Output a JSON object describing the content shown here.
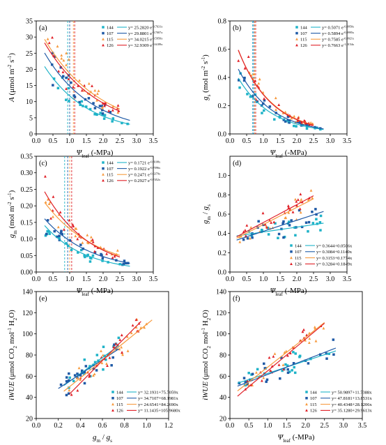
{
  "colors": {
    "144": "#1fb3c8",
    "107": "#1f5aa6",
    "115": "#f79a3e",
    "126": "#e01f26"
  },
  "chart_data": [
    {
      "id": "a",
      "type": "scatter",
      "panel_label": "(a)",
      "x_label": "Ψleaf (-MPa)",
      "y_label": "A (μmol m-2 s-1)",
      "xlim": [
        0,
        3.5
      ],
      "ylim": [
        0,
        35
      ],
      "x_ticks": [
        "0.0",
        "0.5",
        "1.0",
        "1.5",
        "2.0",
        "2.5",
        "3.0",
        "3.5"
      ],
      "y_ticks": [
        "0",
        "5",
        "10",
        "15",
        "20",
        "25",
        "30",
        "35"
      ],
      "legend_position": "top-right",
      "vlines": [
        0.94,
        1.0,
        1.11,
        1.15
      ],
      "series": [
        {
          "name": "144",
          "equation": "y= 25.2820 e-0.7631x",
          "fit": {
            "model": "exp",
            "a": 25.282,
            "b": -0.7631
          },
          "x_range": [
            0.25,
            2.8
          ]
        },
        {
          "name": "107",
          "equation": "y= 29.8801 e-0.7007x",
          "fit": {
            "model": "exp",
            "a": 29.8801,
            "b": -0.7007
          },
          "x_range": [
            0.25,
            2.8
          ]
        },
        {
          "name": "115",
          "equation": "y= 34.0215 e-0.5950x",
          "fit": {
            "model": "exp",
            "a": 34.0215,
            "b": -0.595
          },
          "x_range": [
            0.25,
            2.5
          ]
        },
        {
          "name": "126",
          "equation": "y= 32.9309 e-0.6189x",
          "fit": {
            "model": "exp",
            "a": 32.9309,
            "b": -0.6189
          },
          "x_range": [
            0.25,
            2.5
          ]
        }
      ]
    },
    {
      "id": "b",
      "type": "scatter",
      "panel_label": "(b)",
      "x_label": "Ψleaf (-MPa)",
      "y_label": "gs (mol m-2 s-1)",
      "xlim": [
        0,
        3.5
      ],
      "ylim": [
        0,
        0.8
      ],
      "x_ticks": [
        "0.0",
        "0.5",
        "1.0",
        "1.5",
        "2.0",
        "2.5",
        "3.0",
        "3.5"
      ],
      "y_ticks": [
        "0.0",
        "0.2",
        "0.4",
        "0.6",
        "0.8"
      ],
      "legend_position": "top-right",
      "vlines": [
        0.68,
        0.71,
        0.74,
        0.77
      ],
      "series": [
        {
          "name": "144",
          "equation": "y= 0.5071 e-0.9950x",
          "fit": {
            "model": "exp",
            "a": 0.5071,
            "b": -0.995
          },
          "x_range": [
            0.25,
            2.8
          ]
        },
        {
          "name": "107",
          "equation": "y= 0.5894 e-0.9995x",
          "fit": {
            "model": "exp",
            "a": 0.5894,
            "b": -0.9995
          },
          "x_range": [
            0.25,
            2.8
          ]
        },
        {
          "name": "115",
          "equation": "y= 0.7585 e-0.9921x",
          "fit": {
            "model": "exp",
            "a": 0.7585,
            "b": -0.9921
          },
          "x_range": [
            0.25,
            2.5
          ]
        },
        {
          "name": "126",
          "equation": "y= 0.7663 e-1.0154x",
          "fit": {
            "model": "exp",
            "a": 0.7663,
            "b": -1.0154
          },
          "x_range": [
            0.25,
            2.5
          ]
        }
      ]
    },
    {
      "id": "c",
      "type": "scatter",
      "panel_label": "(c)",
      "x_label": "Ψleaf (-MPa)",
      "y_label": "gm (mol m-2 s-1)",
      "xlim": [
        0,
        3.5
      ],
      "ylim": [
        0,
        0.35
      ],
      "x_ticks": [
        "0.0",
        "0.5",
        "1.0",
        "1.5",
        "2.0",
        "2.5",
        "3.0",
        "3.5"
      ],
      "y_ticks": [
        "0.00",
        "0.05",
        "0.10",
        "0.15",
        "0.20",
        "0.25",
        "0.30",
        "0.35"
      ],
      "legend_position": "top-right",
      "vlines": [
        0.85,
        0.94,
        1.0,
        1.06
      ],
      "series": [
        {
          "name": "144",
          "equation": "y= 0.1721 e-0.8108x",
          "fit": {
            "model": "exp",
            "a": 0.1721,
            "b": -0.8108
          },
          "x_range": [
            0.25,
            2.8
          ]
        },
        {
          "name": "107",
          "equation": "y= 0.1922 e-0.7096x",
          "fit": {
            "model": "exp",
            "a": 0.1922,
            "b": -0.7096
          },
          "x_range": [
            0.25,
            2.8
          ]
        },
        {
          "name": "115",
          "equation": "y= 0.2471 e-0.6379x",
          "fit": {
            "model": "exp",
            "a": 0.2471,
            "b": -0.6379
          },
          "x_range": [
            0.25,
            2.5
          ]
        },
        {
          "name": "126",
          "equation": "y= 0.2927 e-0.7452x",
          "fit": {
            "model": "exp",
            "a": 0.2927,
            "b": -0.7452
          },
          "x_range": [
            0.25,
            2.5
          ]
        }
      ]
    },
    {
      "id": "d",
      "type": "scatter",
      "panel_label": "(d)",
      "x_label": "Ψleaf (-MPa)",
      "y_label": "gm / gs",
      "xlim": [
        0,
        3.5
      ],
      "ylim": [
        0,
        1.2
      ],
      "x_ticks": [
        "0.0",
        "0.5",
        "1.0",
        "1.5",
        "2.0",
        "2.5",
        "3.0",
        "3.5"
      ],
      "y_ticks": [
        "0.0",
        "0.2",
        "0.4",
        "0.6",
        "0.8",
        "1.0"
      ],
      "legend_position": "bottom-right",
      "vlines": [],
      "series": [
        {
          "name": "144",
          "equation": "y= 0.3644+0.0506x",
          "fit": {
            "model": "lin",
            "a": 0.3644,
            "b": 0.0506
          },
          "x_range": [
            0.2,
            2.8
          ]
        },
        {
          "name": "107",
          "equation": "y= 0.3084+0.1140x",
          "fit": {
            "model": "lin",
            "a": 0.3084,
            "b": 0.114
          },
          "x_range": [
            0.2,
            2.8
          ]
        },
        {
          "name": "115",
          "equation": "y= 0.3153+0.1774x",
          "fit": {
            "model": "lin",
            "a": 0.3153,
            "b": 0.1774
          },
          "x_range": [
            0.2,
            2.5
          ]
        },
        {
          "name": "126",
          "equation": "y= 0.3284+0.1849x",
          "fit": {
            "model": "lin",
            "a": 0.3284,
            "b": 0.1849
          },
          "x_range": [
            0.2,
            2.5
          ]
        }
      ]
    },
    {
      "id": "e",
      "type": "scatter",
      "panel_label": "(e)",
      "x_label": "gm / gs",
      "y_label": "iWUE (μmol CO2 mol-1 H2O)",
      "xlim": [
        0,
        1.2
      ],
      "ylim": [
        20,
        140
      ],
      "x_ticks": [
        "0.0",
        "0.2",
        "0.4",
        "0.6",
        "0.8",
        "1.0",
        "1.2"
      ],
      "y_ticks": [
        "20",
        "40",
        "60",
        "80",
        "100",
        "120",
        "140"
      ],
      "legend_position": "bottom-right",
      "vlines": [],
      "series": [
        {
          "name": "144",
          "equation": "y= 32.1931+75.7059x",
          "fit": {
            "model": "lin",
            "a": 32.1931,
            "b": 75.7059
          },
          "x_range": [
            0.25,
            0.75
          ]
        },
        {
          "name": "107",
          "equation": "y= 34.7107+68.1981x",
          "fit": {
            "model": "lin",
            "a": 34.7107,
            "b": 68.1981
          },
          "x_range": [
            0.2,
            0.75
          ]
        },
        {
          "name": "115",
          "equation": "y= 24.6541+84.2690x",
          "fit": {
            "model": "lin",
            "a": 24.6541,
            "b": 84.269
          },
          "x_range": [
            0.25,
            1.05
          ]
        },
        {
          "name": "126",
          "equation": "y= 11.1435+105.9680x",
          "fit": {
            "model": "lin",
            "a": 11.1435,
            "b": 105.968
          },
          "x_range": [
            0.3,
            0.95
          ]
        }
      ]
    },
    {
      "id": "f",
      "type": "scatter",
      "panel_label": "(f)",
      "x_label": "Ψleaf (-MPa)",
      "y_label": "iWUE (μmol CO2 mol-1 H2O)",
      "xlim": [
        0,
        3.5
      ],
      "ylim": [
        20,
        140
      ],
      "x_ticks": [
        "0.0",
        "0.5",
        "1.0",
        "1.5",
        "2.0",
        "2.5",
        "3.0",
        "3.5"
      ],
      "y_ticks": [
        "20",
        "40",
        "60",
        "80",
        "100",
        "120",
        "140"
      ],
      "legend_position": "bottom-right",
      "vlines": [],
      "series": [
        {
          "name": "144",
          "equation": "y= 50.9897+11.7388x",
          "fit": {
            "model": "lin",
            "a": 50.9897,
            "b": 11.7388
          },
          "x_range": [
            0.2,
            2.8
          ]
        },
        {
          "name": "107",
          "equation": "y= 47.8181+13.8531x",
          "fit": {
            "model": "lin",
            "a": 47.8181,
            "b": 13.8531
          },
          "x_range": [
            0.2,
            2.8
          ]
        },
        {
          "name": "115",
          "equation": "y= 40.4348+28.1206x",
          "fit": {
            "model": "lin",
            "a": 40.4348,
            "b": 28.1206
          },
          "x_range": [
            0.2,
            2.5
          ]
        },
        {
          "name": "126",
          "equation": "y= 35.1280+29.9613x",
          "fit": {
            "model": "lin",
            "a": 35.128,
            "b": 29.9613
          },
          "x_range": [
            0.2,
            2.5
          ]
        }
      ]
    }
  ]
}
